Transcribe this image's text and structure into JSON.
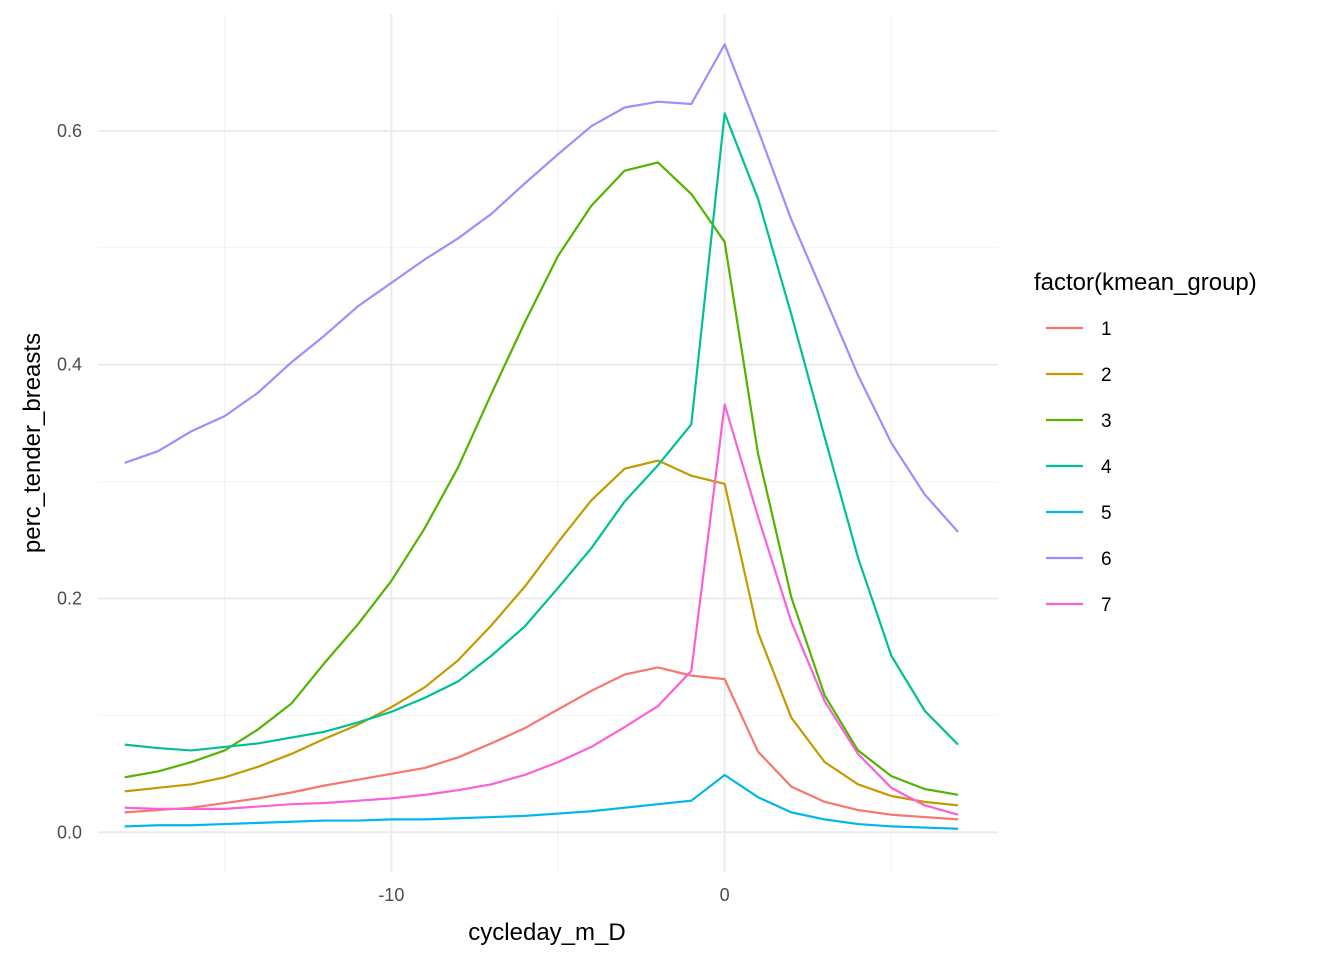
{
  "chart_data": {
    "type": "line",
    "title": "",
    "xlabel": "cycleday_m_D",
    "ylabel": "perc_tender_breasts",
    "xlim": [
      -18.8,
      8.2
    ],
    "ylim": [
      -0.034,
      0.7
    ],
    "x_ticks": [
      -10,
      0
    ],
    "x_tick_labels": [
      "-10",
      "0"
    ],
    "x_minor_ticks": [
      -15,
      -5,
      5
    ],
    "y_ticks": [
      0.0,
      0.2,
      0.4,
      0.6
    ],
    "y_tick_labels": [
      "0.0",
      "0.2",
      "0.4",
      "0.6"
    ],
    "y_minor_ticks": [
      0.1,
      0.3,
      0.5
    ],
    "grid": true,
    "legend": {
      "title": "factor(kmean_group)",
      "position": "right"
    },
    "x": [
      -18,
      -17,
      -16,
      -15,
      -14,
      -13,
      -12,
      -11,
      -10,
      -9,
      -8,
      -7,
      -6,
      -5,
      -4,
      -3,
      -2,
      -1,
      0,
      1,
      2,
      3,
      4,
      5,
      6,
      7
    ],
    "series": [
      {
        "name": "1",
        "color": "#F8766D",
        "values": [
          0.017,
          0.019,
          0.021,
          0.025,
          0.029,
          0.034,
          0.04,
          0.045,
          0.05,
          0.055,
          0.064,
          0.076,
          0.089,
          0.105,
          0.121,
          0.135,
          0.141,
          0.134,
          0.131,
          0.069,
          0.039,
          0.026,
          0.019,
          0.015,
          0.013,
          0.011
        ]
      },
      {
        "name": "2",
        "color": "#C49A00",
        "values": [
          0.035,
          0.038,
          0.041,
          0.047,
          0.056,
          0.067,
          0.08,
          0.092,
          0.107,
          0.124,
          0.147,
          0.177,
          0.21,
          0.248,
          0.284,
          0.311,
          0.318,
          0.305,
          0.298,
          0.171,
          0.098,
          0.06,
          0.041,
          0.031,
          0.026,
          0.023
        ]
      },
      {
        "name": "3",
        "color": "#53B400",
        "values": [
          0.047,
          0.052,
          0.06,
          0.07,
          0.088,
          0.11,
          0.145,
          0.178,
          0.215,
          0.26,
          0.312,
          0.375,
          0.436,
          0.493,
          0.536,
          0.566,
          0.573,
          0.546,
          0.505,
          0.324,
          0.201,
          0.117,
          0.07,
          0.048,
          0.037,
          0.032
        ]
      },
      {
        "name": "4",
        "color": "#00C094",
        "values": [
          0.075,
          0.072,
          0.07,
          0.073,
          0.076,
          0.081,
          0.086,
          0.094,
          0.103,
          0.115,
          0.129,
          0.151,
          0.176,
          0.209,
          0.243,
          0.283,
          0.314,
          0.349,
          0.615,
          0.542,
          0.443,
          0.338,
          0.235,
          0.151,
          0.104,
          0.075
        ]
      },
      {
        "name": "5",
        "color": "#00B6EB",
        "values": [
          0.005,
          0.006,
          0.006,
          0.007,
          0.008,
          0.009,
          0.01,
          0.01,
          0.011,
          0.011,
          0.012,
          0.013,
          0.014,
          0.016,
          0.018,
          0.021,
          0.024,
          0.027,
          0.049,
          0.03,
          0.017,
          0.011,
          0.007,
          0.005,
          0.004,
          0.003
        ]
      },
      {
        "name": "6",
        "color": "#A58AFF",
        "values": [
          0.316,
          0.326,
          0.343,
          0.356,
          0.376,
          0.402,
          0.425,
          0.45,
          0.47,
          0.49,
          0.508,
          0.529,
          0.555,
          0.58,
          0.604,
          0.62,
          0.625,
          0.623,
          0.674,
          0.601,
          0.524,
          0.458,
          0.391,
          0.333,
          0.289,
          0.257
        ]
      },
      {
        "name": "7",
        "color": "#FB61D7",
        "values": [
          0.021,
          0.02,
          0.02,
          0.02,
          0.022,
          0.024,
          0.025,
          0.027,
          0.029,
          0.032,
          0.036,
          0.041,
          0.049,
          0.06,
          0.073,
          0.09,
          0.108,
          0.138,
          0.366,
          0.27,
          0.18,
          0.112,
          0.067,
          0.038,
          0.023,
          0.015
        ]
      }
    ]
  }
}
